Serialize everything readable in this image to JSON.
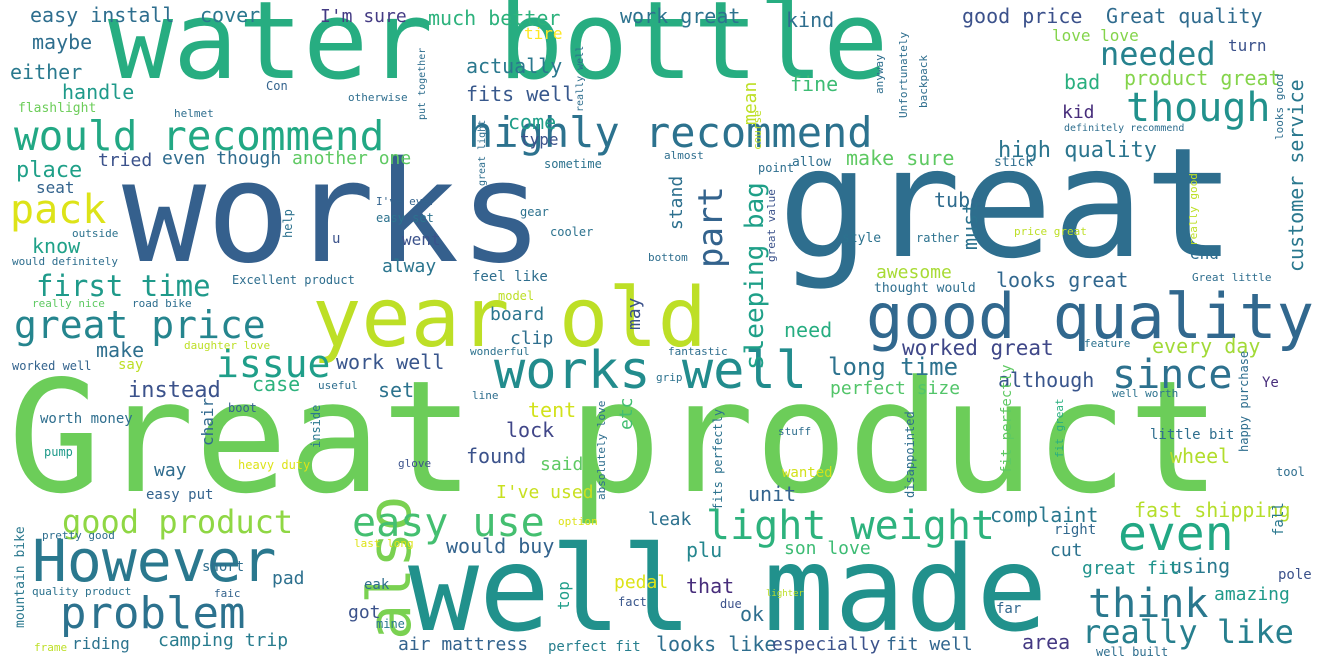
{
  "cloud": {
    "words": [
      {
        "text": "Great product",
        "color": "#6ccd59"
      },
      {
        "text": "works",
        "color": "#35608d"
      },
      {
        "text": "great",
        "color": "#2e6e8e"
      },
      {
        "text": "water bottle",
        "color": "#27ad81"
      },
      {
        "text": "well made",
        "color": "#21918c"
      },
      {
        "text": "year old",
        "color": "#bddf26"
      },
      {
        "text": "good quality",
        "color": "#31688e"
      },
      {
        "text": "However",
        "color": "#2a788e"
      },
      {
        "text": "problem",
        "color": "#2c728e"
      },
      {
        "text": "also",
        "color": "#7ad151"
      },
      {
        "text": "works well",
        "color": "#228c8d"
      },
      {
        "text": "would recommend",
        "color": "#22a884"
      },
      {
        "text": "highly recommend",
        "color": "#2c728e"
      },
      {
        "text": "easy use",
        "color": "#44bf70"
      },
      {
        "text": "light weight",
        "color": "#2db27d"
      },
      {
        "text": "good product",
        "color": "#8fd744"
      },
      {
        "text": "even",
        "color": "#22a884"
      },
      {
        "text": "think",
        "color": "#2a788e"
      },
      {
        "text": "though",
        "color": "#21918c"
      },
      {
        "text": "since",
        "color": "#2d718e"
      },
      {
        "text": "great price",
        "color": "#25858e"
      },
      {
        "text": "issue",
        "color": "#1f9e89"
      },
      {
        "text": "pack",
        "color": "#dde318"
      },
      {
        "text": "needed",
        "color": "#26828e"
      },
      {
        "text": "really like",
        "color": "#277f8e"
      },
      {
        "text": "first time",
        "color": "#1f9a8a"
      },
      {
        "text": "part",
        "color": "#33638d"
      },
      {
        "text": "sleeping bag",
        "color": "#1fa088"
      },
      {
        "text": "customer service",
        "color": "#2a788e"
      },
      {
        "text": "long time",
        "color": "#2c728e"
      },
      {
        "text": "worked great",
        "color": "#3f4788"
      },
      {
        "text": "high quality",
        "color": "#2b758e"
      },
      {
        "text": "easy install",
        "color": "#2e6e8e"
      },
      {
        "text": "cover",
        "color": "#2a788e"
      },
      {
        "text": "I'm sure",
        "color": "#443b84"
      },
      {
        "text": "much better",
        "color": "#2db27d"
      },
      {
        "text": "work great",
        "color": "#2c728e"
      },
      {
        "text": "kind",
        "color": "#2e6e8e"
      },
      {
        "text": "good price",
        "color": "#3b518b"
      },
      {
        "text": "Great quality",
        "color": "#2f6b8e"
      },
      {
        "text": "maybe",
        "color": "#2e6e8e"
      },
      {
        "text": "either",
        "color": "#29798e"
      },
      {
        "text": "handle",
        "color": "#1f9a8a"
      },
      {
        "text": "actually",
        "color": "#2a788e"
      },
      {
        "text": "fits well",
        "color": "#38588c"
      },
      {
        "text": "come",
        "color": "#1f9e89"
      },
      {
        "text": "type",
        "color": "#3b528b"
      },
      {
        "text": "mean",
        "color": "#bddf26"
      },
      {
        "text": "tire",
        "color": "#fde725"
      },
      {
        "text": "fine",
        "color": "#3dbc74"
      },
      {
        "text": "kid",
        "color": "#472d7b"
      },
      {
        "text": "bad",
        "color": "#29af7f"
      },
      {
        "text": "product great",
        "color": "#84d44b"
      },
      {
        "text": "love love",
        "color": "#84d44b"
      },
      {
        "text": "turn",
        "color": "#3b518b"
      },
      {
        "text": "flashlight",
        "color": "#6ccd59"
      },
      {
        "text": "place",
        "color": "#1fa088"
      },
      {
        "text": "tried",
        "color": "#3b528b"
      },
      {
        "text": "even though",
        "color": "#2f6c8e"
      },
      {
        "text": "another one",
        "color": "#5ec962"
      },
      {
        "text": "make sure",
        "color": "#5ec962"
      },
      {
        "text": "seat",
        "color": "#33638d"
      },
      {
        "text": "know",
        "color": "#1fa188"
      },
      {
        "text": "tube",
        "color": "#2f6c8e"
      },
      {
        "text": "must",
        "color": "#2c728e"
      },
      {
        "text": "went",
        "color": "#3b528b"
      },
      {
        "text": "alway",
        "color": "#2b758e"
      },
      {
        "text": "stand",
        "color": "#2d708e"
      },
      {
        "text": "end",
        "color": "#2e6d8e"
      },
      {
        "text": "wheel",
        "color": "#b2dd2d"
      },
      {
        "text": "every day",
        "color": "#a2da37"
      },
      {
        "text": "although",
        "color": "#39558c"
      },
      {
        "text": "make",
        "color": "#2e6f8e"
      },
      {
        "text": "instead",
        "color": "#3b528b"
      },
      {
        "text": "case",
        "color": "#2db27d"
      },
      {
        "text": "set",
        "color": "#2c738e"
      },
      {
        "text": "work well",
        "color": "#39568c"
      },
      {
        "text": "need",
        "color": "#27ad81"
      },
      {
        "text": "awesome",
        "color": "#a8db34"
      },
      {
        "text": "looks great",
        "color": "#31678e"
      },
      {
        "text": "perfect size",
        "color": "#52c569"
      },
      {
        "text": "board",
        "color": "#2b758e"
      },
      {
        "text": "clip",
        "color": "#2e6f8e"
      },
      {
        "text": "may",
        "color": "#3b528b"
      },
      {
        "text": "lock",
        "color": "#404688"
      },
      {
        "text": "tent",
        "color": "#d2e21b"
      },
      {
        "text": "etc",
        "color": "#42be71"
      },
      {
        "text": "said",
        "color": "#5ec962"
      },
      {
        "text": "found",
        "color": "#3b528b"
      },
      {
        "text": "way",
        "color": "#2f6c8e"
      },
      {
        "text": "chair",
        "color": "#30698e"
      },
      {
        "text": "unit",
        "color": "#33638d"
      },
      {
        "text": "I've used",
        "color": "#c8e020"
      },
      {
        "text": "leak",
        "color": "#2d718e"
      },
      {
        "text": "complaint",
        "color": "#2a788e"
      },
      {
        "text": "fast shipping",
        "color": "#b5de2b"
      },
      {
        "text": "plu",
        "color": "#24868e"
      },
      {
        "text": "son love",
        "color": "#3dbc74"
      },
      {
        "text": "would buy",
        "color": "#33638d"
      },
      {
        "text": "using",
        "color": "#29798e"
      },
      {
        "text": "cut",
        "color": "#2c728e"
      },
      {
        "text": "great fit",
        "color": "#20938c"
      },
      {
        "text": "amazing",
        "color": "#1f9a8a"
      },
      {
        "text": "pad",
        "color": "#2d708e"
      },
      {
        "text": "got",
        "color": "#3b528b"
      },
      {
        "text": "top",
        "color": "#1f9e89"
      },
      {
        "text": "pedal",
        "color": "#dde318"
      },
      {
        "text": "that",
        "color": "#472d7b"
      },
      {
        "text": "ok",
        "color": "#2e6e8e"
      },
      {
        "text": "camping trip",
        "color": "#287c8e"
      },
      {
        "text": "riding",
        "color": "#2c738e"
      },
      {
        "text": "air mattress",
        "color": "#33638d"
      },
      {
        "text": "perfect fit",
        "color": "#277f8e"
      },
      {
        "text": "looks like",
        "color": "#2e6e8e"
      },
      {
        "text": "especially",
        "color": "#3b528b"
      },
      {
        "text": "fit well",
        "color": "#31668e"
      },
      {
        "text": "area",
        "color": "#443983"
      },
      {
        "text": "mountain bike",
        "color": "#2a788e"
      },
      {
        "text": "quality product",
        "color": "#2c728e"
      },
      {
        "text": "faic",
        "color": "#33638d"
      },
      {
        "text": "frame",
        "color": "#bddf26"
      },
      {
        "text": "mine",
        "color": "#2a788e"
      },
      {
        "text": "fact",
        "color": "#39568c"
      },
      {
        "text": "due",
        "color": "#3b518b"
      },
      {
        "text": "far",
        "color": "#31688e"
      },
      {
        "text": "well built",
        "color": "#2e6e8e"
      },
      {
        "text": "lighter",
        "color": "#bddf26"
      },
      {
        "text": "pole",
        "color": "#3b528b"
      },
      {
        "text": "fall",
        "color": "#2a788e"
      },
      {
        "text": "right",
        "color": "#31688e"
      },
      {
        "text": "Ye",
        "color": "#472d7b"
      },
      {
        "text": "tool",
        "color": "#2e6e8e"
      },
      {
        "text": "happy purchase",
        "color": "#2e6e8e"
      },
      {
        "text": "little bit",
        "color": "#2e6e8e"
      },
      {
        "text": "fit great",
        "color": "#29af7f"
      },
      {
        "text": "well worth",
        "color": "#2c728e"
      },
      {
        "text": "fit perfectly",
        "color": "#5ec962"
      },
      {
        "text": "disappointed",
        "color": "#2e6e8e"
      },
      {
        "text": "feature",
        "color": "#2c728e"
      },
      {
        "text": "worth money",
        "color": "#2e6e8e"
      },
      {
        "text": "pump",
        "color": "#1f9a8a"
      },
      {
        "text": "boot",
        "color": "#33638d"
      },
      {
        "text": "inside",
        "color": "#2a788e"
      },
      {
        "text": "useful",
        "color": "#2e6e8e"
      },
      {
        "text": "line",
        "color": "#2e6e8e"
      },
      {
        "text": "wonderful",
        "color": "#2c728e"
      },
      {
        "text": "fantastic",
        "color": "#2e6e8e"
      },
      {
        "text": "grip",
        "color": "#2c728e"
      },
      {
        "text": "stuff",
        "color": "#2e6e8e"
      },
      {
        "text": "glove",
        "color": "#3b528b"
      },
      {
        "text": "heavy duty",
        "color": "#dde318"
      },
      {
        "text": "easy put",
        "color": "#33638d"
      },
      {
        "text": "wanted",
        "color": "#d2e21b"
      },
      {
        "text": "fits perfectly",
        "color": "#2c728e"
      },
      {
        "text": "absolutely love",
        "color": "#2e6e8e"
      },
      {
        "text": "option",
        "color": "#dde318"
      },
      {
        "text": "pretty good",
        "color": "#2e6e8e"
      },
      {
        "text": "short",
        "color": "#2e6e8e"
      },
      {
        "text": "last long",
        "color": "#dde318"
      },
      {
        "text": "eak",
        "color": "#2e6e8e"
      },
      {
        "text": "say",
        "color": "#bddf26"
      },
      {
        "text": "worked well",
        "color": "#33638d"
      },
      {
        "text": "daughter love",
        "color": "#bddf26"
      },
      {
        "text": "really nice",
        "color": "#5ec962"
      },
      {
        "text": "road bike",
        "color": "#2e6e8e"
      },
      {
        "text": "would definitely",
        "color": "#2e6e8e"
      },
      {
        "text": "Excellent product",
        "color": "#2e6e8e"
      },
      {
        "text": "outside",
        "color": "#2c728e"
      },
      {
        "text": "help",
        "color": "#2c728e"
      },
      {
        "text": "u",
        "color": "#3b528b"
      },
      {
        "text": "I've ever",
        "color": "#33638d"
      },
      {
        "text": "easy set",
        "color": "#2c728e"
      },
      {
        "text": "feel like",
        "color": "#2e6e8e"
      },
      {
        "text": "model",
        "color": "#bddf26"
      },
      {
        "text": "gear",
        "color": "#2c728e"
      },
      {
        "text": "cooler",
        "color": "#2c728e"
      },
      {
        "text": "bottom",
        "color": "#2e6e8e"
      },
      {
        "text": "great value",
        "color": "#3b528b"
      },
      {
        "text": "style",
        "color": "#2c728e"
      },
      {
        "text": "rather",
        "color": "#2c728e"
      },
      {
        "text": "price great",
        "color": "#bddf26"
      },
      {
        "text": "really good",
        "color": "#bddf26"
      },
      {
        "text": "Great little",
        "color": "#2e6e8e"
      },
      {
        "text": "thought would",
        "color": "#2e6e8e"
      },
      {
        "text": "point",
        "color": "#2e6e8e"
      },
      {
        "text": "allow",
        "color": "#2e6e8e"
      },
      {
        "text": "stick",
        "color": "#2e6e8e"
      },
      {
        "text": "almost",
        "color": "#2e6e8e"
      },
      {
        "text": "course",
        "color": "#bddf26"
      },
      {
        "text": "great light",
        "color": "#2e6e8e"
      },
      {
        "text": "sometime",
        "color": "#2c728e"
      },
      {
        "text": "put together",
        "color": "#2e6e8e"
      },
      {
        "text": "really well",
        "color": "#2e6e8e"
      },
      {
        "text": "Con",
        "color": "#33638d"
      },
      {
        "text": "otherwise",
        "color": "#2e6e8e"
      },
      {
        "text": "helmet",
        "color": "#2e6e8e"
      },
      {
        "text": "anyway",
        "color": "#2e6e8e"
      },
      {
        "text": "Unfortunately",
        "color": "#2e6e8e"
      },
      {
        "text": "backpack",
        "color": "#2e6e8e"
      },
      {
        "text": "definitely recommend",
        "color": "#2e6e8e"
      },
      {
        "text": "looks good",
        "color": "#2e6e8e"
      }
    ]
  }
}
